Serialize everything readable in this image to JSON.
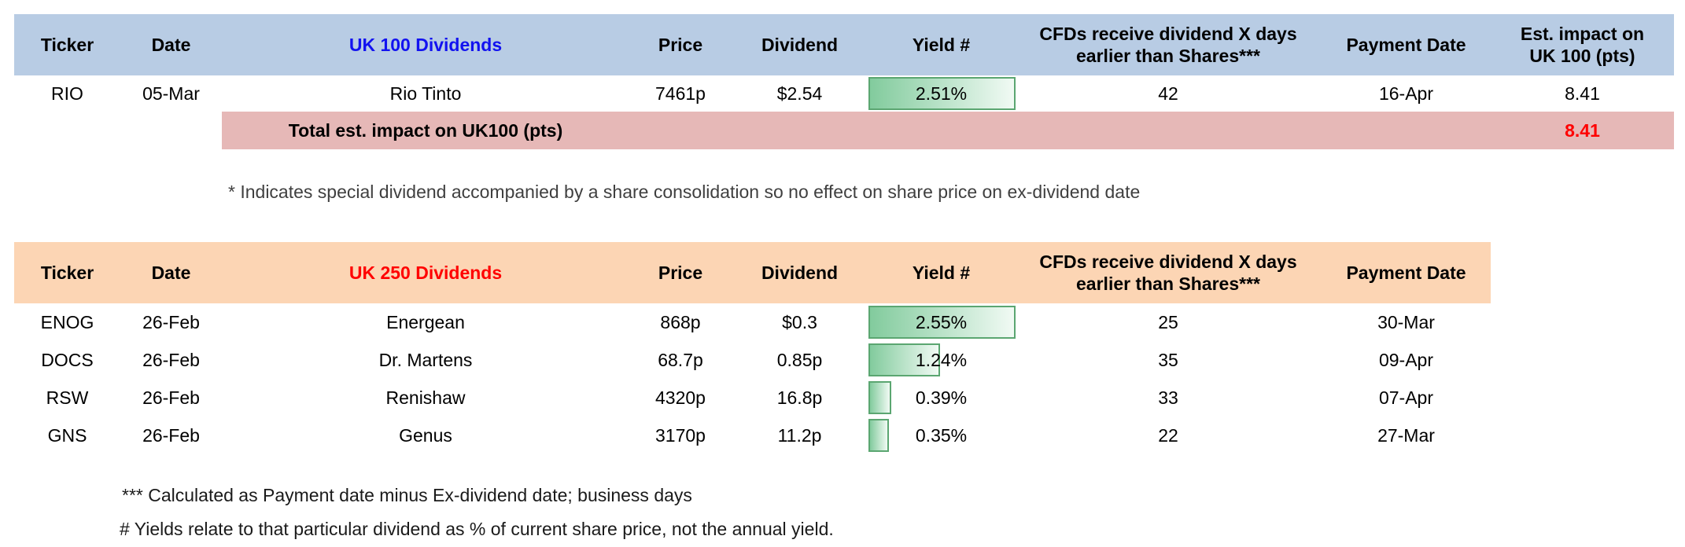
{
  "colors": {
    "header_blue": "#b8cce4",
    "header_orange": "#fcd5b4",
    "total_pink": "#e6b8b7",
    "title_blue": "#1212f0",
    "title_red": "#ff0000",
    "total_red": "#ff0000",
    "bar_border": "#5ba671",
    "bar_start": "#82cb9d",
    "bar_end": "#f1faf4",
    "note_gray": "#3f3f3f",
    "text_black": "#000000"
  },
  "table_uk100": {
    "headers": {
      "ticker": "Ticker",
      "date": "Date",
      "title": "UK 100 Dividends",
      "price": "Price",
      "dividend": "Dividend",
      "yield": "Yield #",
      "cfds": "CFDs receive dividend X days earlier than Shares***",
      "payment": "Payment Date",
      "impact": "Est. impact on UK 100 (pts)"
    },
    "yield_bar_max": 2.51,
    "rows": [
      {
        "ticker": "RIO",
        "date": "05-Mar",
        "name": "Rio Tinto",
        "price": "7461p",
        "dividend": "$2.54",
        "yield": "2.51%",
        "yield_value": 2.51,
        "cfds": "42",
        "payment": "16-Apr",
        "impact": "8.41"
      }
    ],
    "total_label": "Total est. impact on UK100 (pts)",
    "total_value": "8.41"
  },
  "note_special": "* Indicates special dividend accompanied by a share consolidation so no effect on share price on ex-dividend date",
  "table_uk250": {
    "headers": {
      "ticker": "Ticker",
      "date": "Date",
      "title": "UK 250 Dividends",
      "price": "Price",
      "dividend": "Dividend",
      "yield": "Yield #",
      "cfds": "CFDs receive dividend X days earlier than Shares***",
      "payment": "Payment Date"
    },
    "yield_bar_max": 2.55,
    "rows": [
      {
        "ticker": "ENOG",
        "date": "26-Feb",
        "name": "Energean",
        "price": "868p",
        "dividend": "$0.3",
        "yield": "2.55%",
        "yield_value": 2.55,
        "cfds": "25",
        "payment": "30-Mar"
      },
      {
        "ticker": "DOCS",
        "date": "26-Feb",
        "name": "Dr. Martens",
        "price": "68.7p",
        "dividend": "0.85p",
        "yield": "1.24%",
        "yield_value": 1.24,
        "cfds": "35",
        "payment": "09-Apr"
      },
      {
        "ticker": "RSW",
        "date": "26-Feb",
        "name": "Renishaw",
        "price": "4320p",
        "dividend": "16.8p",
        "yield": "0.39%",
        "yield_value": 0.39,
        "cfds": "33",
        "payment": "07-Apr"
      },
      {
        "ticker": "GNS",
        "date": "26-Feb",
        "name": "Genus",
        "price": "3170p",
        "dividend": "11.2p",
        "yield": "0.35%",
        "yield_value": 0.35,
        "cfds": "22",
        "payment": "27-Mar"
      }
    ]
  },
  "footnotes": [
    "*** Calculated as Payment date minus Ex-dividend date; business days",
    "# Yields relate to that particular dividend as % of current share price, not the annual yield."
  ]
}
